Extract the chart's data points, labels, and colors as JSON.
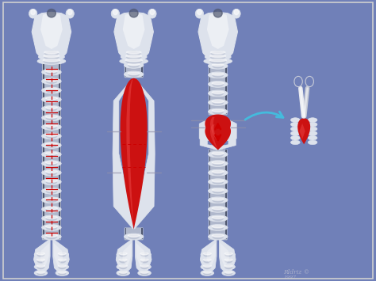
{
  "background_color": "#7080b8",
  "border_color": "#d0d0d0",
  "ring_light": "#dde2ec",
  "ring_mid": "#b0b8cc",
  "ring_dark": "#7a8099",
  "ring_shadow": "#505870",
  "red_main": "#cc1111",
  "red_light": "#e84444",
  "red_dark": "#991111",
  "white": "#ffffff",
  "black": "#111111",
  "dashed_red": "#cc0000",
  "cyan_arrow": "#44bbdd",
  "steel": "#c8ccd8",
  "steel_dark": "#888899",
  "fig_width": 4.74,
  "fig_height": 3.55,
  "dpi": 100
}
